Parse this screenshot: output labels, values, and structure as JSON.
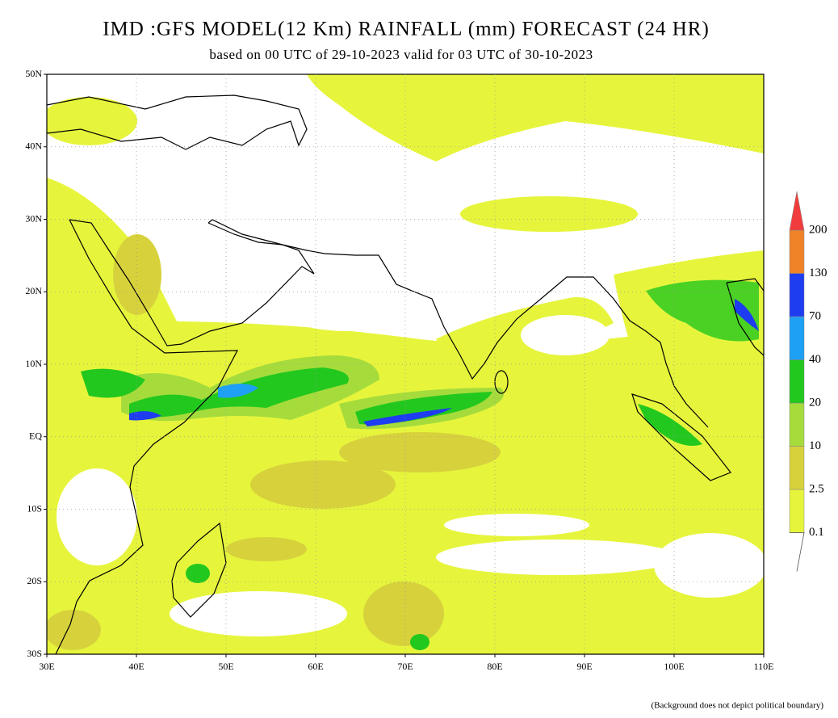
{
  "header": {
    "title": "IMD :GFS MODEL(12 Km) RAINFALL (mm) FORECAST (24 HR)",
    "subtitle": "based on 00 UTC of 29-10-2023 valid for 03 UTC of 30-10-2023"
  },
  "map": {
    "lat_labels": [
      "50N",
      "40N",
      "30N",
      "20N",
      "10N",
      "EQ",
      "10S",
      "20S",
      "30S"
    ],
    "lon_labels": [
      "30E",
      "40E",
      "50E",
      "60E",
      "70E",
      "80E",
      "90E",
      "100E",
      "110E"
    ]
  },
  "legend": {
    "levels": [
      "0.1",
      "2.5",
      "10",
      "20",
      "40",
      "70",
      "130",
      "200"
    ],
    "colors": [
      "#e6f53c",
      "#d7d23c",
      "#a5dc3c",
      "#23c81e",
      "#1ea0f5",
      "#1e3cf0",
      "#f08228",
      "#f03c3c"
    ]
  },
  "footnote": "(Background does not depict political boundary)"
}
